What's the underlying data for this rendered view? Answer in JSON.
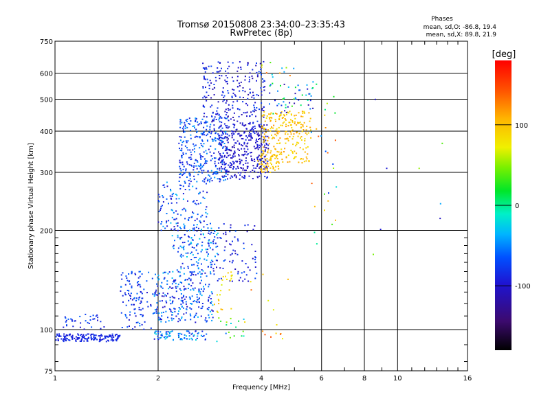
{
  "chart_data": {
    "type": "scatter",
    "title": "Tromsø 20150808 23:34:00–23:35:43",
    "subtitle": "RwPretec (8p)",
    "xlabel": "Frequency [MHz]",
    "ylabel": "Stationary phase Virtual Height [km]",
    "x_scale": "log",
    "y_scale": "log",
    "xlim": [
      1,
      16
    ],
    "ylim": [
      75,
      750
    ],
    "x_ticks": [
      1,
      2,
      4,
      6,
      8,
      10,
      16
    ],
    "y_ticks": [
      75,
      100,
      200,
      300,
      400,
      500,
      600,
      750
    ],
    "grid": true,
    "stats": {
      "heading": "Phases",
      "line_o": "mean, sd,O:  -86.8, 19.4",
      "line_x": "mean, sd,X:  89.8, 21.9"
    },
    "colorbar": {
      "label": "[deg]",
      "ticks": [
        100,
        0,
        -100
      ],
      "range": [
        -180,
        180
      ]
    },
    "clusters": [
      {
        "f": [
          1.0,
          1.55
        ],
        "h": [
          92,
          97
        ],
        "phase": [
          -100,
          -80
        ],
        "n": 170
      },
      {
        "f": [
          1.05,
          1.4
        ],
        "h": [
          100,
          112
        ],
        "phase": [
          -110,
          -60
        ],
        "n": 35
      },
      {
        "f": [
          1.55,
          1.95
        ],
        "h": [
          100,
          150
        ],
        "phase": [
          -110,
          -50
        ],
        "n": 110
      },
      {
        "f": [
          1.95,
          2.9
        ],
        "h": [
          105,
          150
        ],
        "phase": [
          -110,
          -30
        ],
        "n": 260
      },
      {
        "f": [
          1.95,
          2.8
        ],
        "h": [
          93,
          99
        ],
        "phase": [
          -110,
          -20
        ],
        "n": 80
      },
      {
        "f": [
          2.2,
          3.0
        ],
        "h": [
          150,
          205
        ],
        "phase": [
          -100,
          -20
        ],
        "n": 130
      },
      {
        "f": [
          2.0,
          2.8
        ],
        "h": [
          200,
          280
        ],
        "phase": [
          -110,
          -30
        ],
        "n": 130
      },
      {
        "f": [
          2.8,
          3.9
        ],
        "h": [
          140,
          210
        ],
        "phase": [
          -115,
          -60
        ],
        "n": 90
      },
      {
        "f": [
          2.9,
          3.3
        ],
        "h": [
          110,
          150
        ],
        "phase": [
          60,
          110
        ],
        "n": 25
      },
      {
        "f": [
          2.9,
          3.6
        ],
        "h": [
          92,
          110
        ],
        "phase": [
          -60,
          100
        ],
        "n": 18
      },
      {
        "f": [
          2.3,
          3.2
        ],
        "h": [
          280,
          440
        ],
        "phase": [
          -100,
          -40
        ],
        "n": 320
      },
      {
        "f": [
          3.0,
          4.2
        ],
        "h": [
          285,
          420
        ],
        "phase": [
          -120,
          -85
        ],
        "n": 350
      },
      {
        "f": [
          2.7,
          4.1
        ],
        "h": [
          420,
          650
        ],
        "phase": [
          -120,
          -70
        ],
        "n": 240
      },
      {
        "f": [
          3.9,
          4.5
        ],
        "h": [
          300,
          340
        ],
        "phase": [
          90,
          110
        ],
        "n": 50
      },
      {
        "f": [
          4.0,
          5.6
        ],
        "h": [
          320,
          460
        ],
        "phase": [
          80,
          120
        ],
        "n": 230
      },
      {
        "f": [
          4.2,
          5.7
        ],
        "h": [
          450,
          560
        ],
        "phase": [
          -120,
          30
        ],
        "n": 50
      },
      {
        "f": [
          4.0,
          5.0
        ],
        "h": [
          580,
          650
        ],
        "phase": [
          -60,
          150
        ],
        "n": 12
      },
      {
        "f": [
          3.7,
          4.9
        ],
        "h": [
          92,
          150
        ],
        "phase": [
          60,
          160
        ],
        "n": 14
      },
      {
        "f": [
          5.6,
          6.8
        ],
        "h": [
          180,
          600
        ],
        "phase": [
          -100,
          160
        ],
        "n": 28
      },
      {
        "f": [
          8.0,
          15.0
        ],
        "h": [
          150,
          500
        ],
        "phase": [
          -150,
          120
        ],
        "n": 8
      }
    ]
  }
}
